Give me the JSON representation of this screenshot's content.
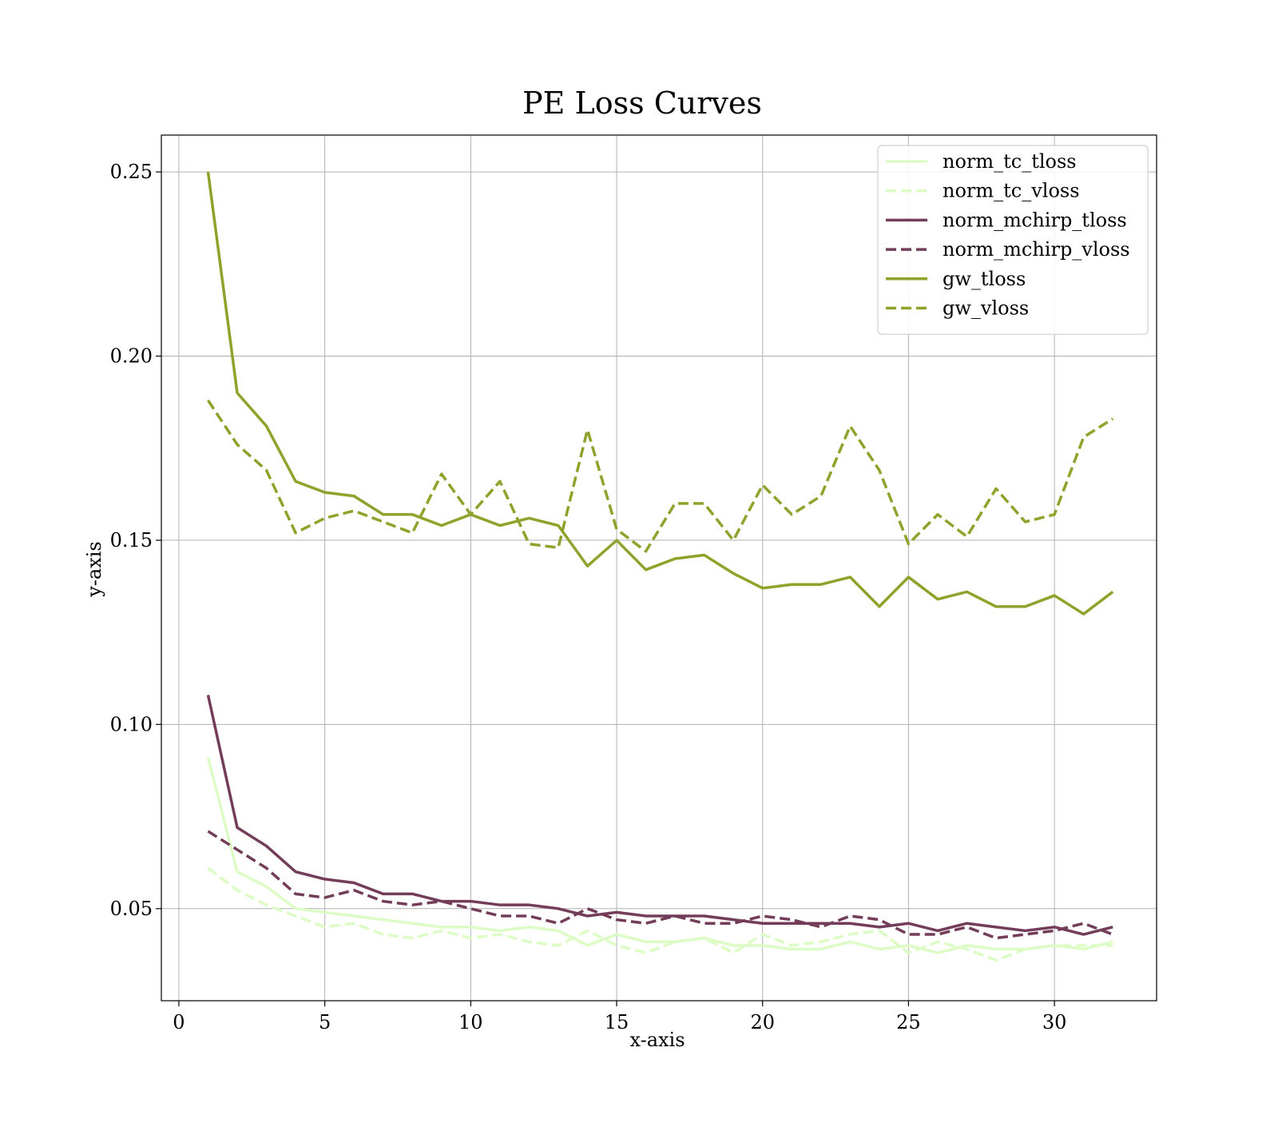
{
  "chart_data": {
    "type": "line",
    "title": "PE Loss Curves",
    "xlabel": "x-axis",
    "ylabel": "y-axis",
    "xlim": [
      -0.6,
      33.5
    ],
    "ylim": [
      0.025,
      0.26
    ],
    "xticks": [
      0,
      5,
      10,
      15,
      20,
      25,
      30
    ],
    "xtick_labels": [
      "0",
      "5",
      "10",
      "15",
      "20",
      "25",
      "30"
    ],
    "yticks": [
      0.05,
      0.1,
      0.15,
      0.2,
      0.25
    ],
    "ytick_labels": [
      "0.05",
      "0.10",
      "0.15",
      "0.20",
      "0.25"
    ],
    "grid": true,
    "legend_position": "top-right",
    "x": [
      1,
      2,
      3,
      4,
      5,
      6,
      7,
      8,
      9,
      10,
      11,
      12,
      13,
      14,
      15,
      16,
      17,
      18,
      19,
      20,
      21,
      22,
      23,
      24,
      25,
      26,
      27,
      28,
      29,
      30,
      31,
      32
    ],
    "series": [
      {
        "name": "norm_tc_tloss",
        "color": "#ddfcc5",
        "dash": "solid",
        "values": [
          0.091,
          0.06,
          0.056,
          0.05,
          0.049,
          0.048,
          0.047,
          0.046,
          0.045,
          0.045,
          0.044,
          0.045,
          0.044,
          0.04,
          0.043,
          0.041,
          0.041,
          0.042,
          0.04,
          0.04,
          0.039,
          0.039,
          0.041,
          0.039,
          0.04,
          0.038,
          0.04,
          0.039,
          0.039,
          0.04,
          0.039,
          0.041
        ]
      },
      {
        "name": "norm_tc_vloss",
        "color": "#ddfcc5",
        "dash": "dashed",
        "values": [
          0.061,
          0.055,
          0.051,
          0.048,
          0.045,
          0.046,
          0.043,
          0.042,
          0.044,
          0.042,
          0.043,
          0.041,
          0.04,
          0.044,
          0.04,
          0.038,
          0.041,
          0.042,
          0.038,
          0.043,
          0.04,
          0.041,
          0.043,
          0.044,
          0.038,
          0.041,
          0.039,
          0.036,
          0.039,
          0.04,
          0.04,
          0.04
        ]
      },
      {
        "name": "norm_mchirp_tloss",
        "color": "#733d5a",
        "dash": "solid",
        "values": [
          0.108,
          0.072,
          0.067,
          0.06,
          0.058,
          0.057,
          0.054,
          0.054,
          0.052,
          0.052,
          0.051,
          0.051,
          0.05,
          0.048,
          0.049,
          0.048,
          0.048,
          0.048,
          0.047,
          0.046,
          0.046,
          0.046,
          0.046,
          0.045,
          0.046,
          0.044,
          0.046,
          0.045,
          0.044,
          0.045,
          0.043,
          0.045
        ]
      },
      {
        "name": "norm_mchirp_vloss",
        "color": "#733d5a",
        "dash": "dashed",
        "values": [
          0.071,
          0.066,
          0.061,
          0.054,
          0.053,
          0.055,
          0.052,
          0.051,
          0.052,
          0.05,
          0.048,
          0.048,
          0.046,
          0.05,
          0.047,
          0.046,
          0.048,
          0.046,
          0.046,
          0.048,
          0.047,
          0.045,
          0.048,
          0.047,
          0.043,
          0.043,
          0.045,
          0.042,
          0.043,
          0.044,
          0.046,
          0.043
        ]
      },
      {
        "name": "gw_tloss",
        "color": "#8ea32b",
        "dash": "solid",
        "values": [
          0.25,
          0.19,
          0.181,
          0.166,
          0.163,
          0.162,
          0.157,
          0.157,
          0.154,
          0.157,
          0.154,
          0.156,
          0.154,
          0.143,
          0.15,
          0.142,
          0.145,
          0.146,
          0.141,
          0.137,
          0.138,
          0.138,
          0.14,
          0.132,
          0.14,
          0.134,
          0.136,
          0.132,
          0.132,
          0.135,
          0.13,
          0.136
        ]
      },
      {
        "name": "gw_vloss",
        "color": "#8ea32b",
        "dash": "dashed",
        "values": [
          0.188,
          0.176,
          0.169,
          0.152,
          0.156,
          0.158,
          0.155,
          0.152,
          0.168,
          0.157,
          0.166,
          0.149,
          0.148,
          0.18,
          0.153,
          0.147,
          0.16,
          0.16,
          0.15,
          0.165,
          0.157,
          0.162,
          0.181,
          0.169,
          0.149,
          0.157,
          0.151,
          0.164,
          0.155,
          0.157,
          0.178,
          0.183
        ]
      }
    ]
  }
}
